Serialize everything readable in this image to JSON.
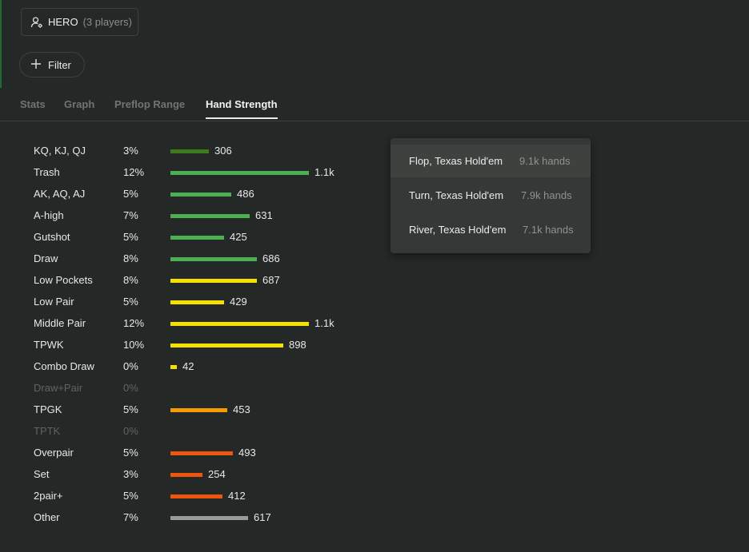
{
  "player": {
    "name": "HERO",
    "count": "(3 players)",
    "icon": "user-settings-icon"
  },
  "filter": {
    "label": "Filter",
    "icon": "plus-icon"
  },
  "tabs": [
    {
      "label": "Stats"
    },
    {
      "label": "Graph"
    },
    {
      "label": "Preflop Range"
    },
    {
      "label": "Hand Strength",
      "active": true
    }
  ],
  "hand_strength": [
    {
      "label": "KQ, KJ, QJ",
      "pct": "3%",
      "value": "306",
      "count": 306,
      "color": "#3f7a1f"
    },
    {
      "label": "Trash",
      "pct": "12%",
      "value": "1.1k",
      "count": 1100,
      "color": "#4caf50"
    },
    {
      "label": "AK, AQ, AJ",
      "pct": "5%",
      "value": "486",
      "count": 486,
      "color": "#4caf50"
    },
    {
      "label": "A-high",
      "pct": "7%",
      "value": "631",
      "count": 631,
      "color": "#4caf50"
    },
    {
      "label": "Gutshot",
      "pct": "5%",
      "value": "425",
      "count": 425,
      "color": "#4caf50"
    },
    {
      "label": "Draw",
      "pct": "8%",
      "value": "686",
      "count": 686,
      "color": "#4caf50"
    },
    {
      "label": "Low Pockets",
      "pct": "8%",
      "value": "687",
      "count": 687,
      "color": "#f5e000"
    },
    {
      "label": "Low Pair",
      "pct": "5%",
      "value": "429",
      "count": 429,
      "color": "#f5e000"
    },
    {
      "label": "Middle Pair",
      "pct": "12%",
      "value": "1.1k",
      "count": 1100,
      "color": "#f5e000"
    },
    {
      "label": "TPWK",
      "pct": "10%",
      "value": "898",
      "count": 898,
      "color": "#f5e000"
    },
    {
      "label": "Combo Draw",
      "pct": "0%",
      "value": "42",
      "count": 42,
      "color": "#f5e000"
    },
    {
      "label": "Draw+Pair",
      "pct": "0%",
      "value": "",
      "count": 0,
      "color": "#f5e000",
      "dim": true
    },
    {
      "label": "TPGK",
      "pct": "5%",
      "value": "453",
      "count": 453,
      "color": "#f59a00"
    },
    {
      "label": "TPTK",
      "pct": "0%",
      "value": "",
      "count": 0,
      "color": "#f59a00",
      "dim": true
    },
    {
      "label": "Overpair",
      "pct": "5%",
      "value": "493",
      "count": 493,
      "color": "#f0550f"
    },
    {
      "label": "Set",
      "pct": "3%",
      "value": "254",
      "count": 254,
      "color": "#f0550f"
    },
    {
      "label": "2pair+",
      "pct": "5%",
      "value": "412",
      "count": 412,
      "color": "#f0550f"
    },
    {
      "label": "Other",
      "pct": "7%",
      "value": "617",
      "count": 617,
      "color": "#9a9a9a"
    }
  ],
  "street_dropdown": {
    "items": [
      {
        "label": "Flop, Texas Hold'em",
        "hands": "9.1k hands",
        "selected": true
      },
      {
        "label": "Turn, Texas Hold'em",
        "hands": "7.9k hands"
      },
      {
        "label": "River, Texas Hold'em",
        "hands": "7.1k hands"
      }
    ]
  }
}
